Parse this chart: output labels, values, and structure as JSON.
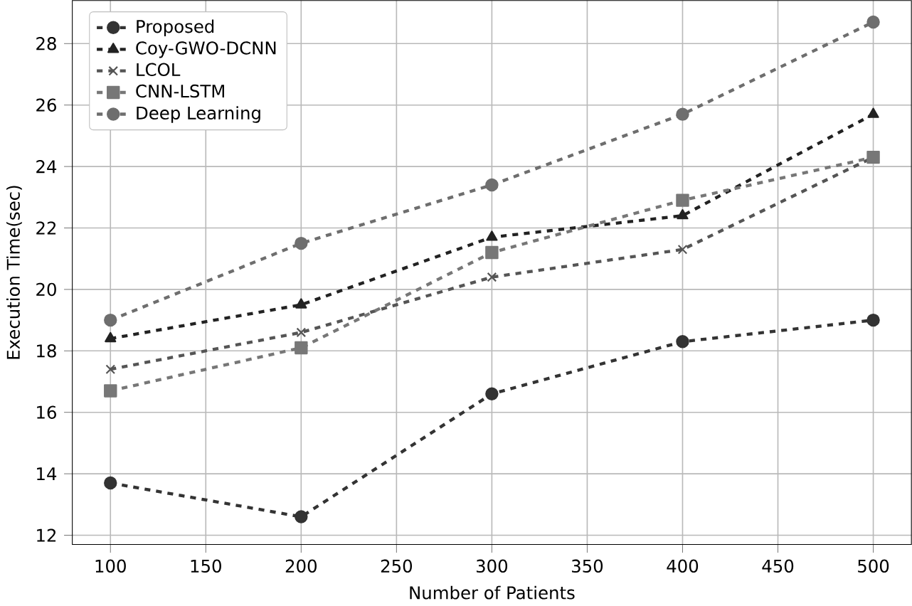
{
  "chart_data": {
    "type": "line",
    "xlabel": "Number of Patients",
    "ylabel": "Execution Time(sec)",
    "x": [
      100,
      200,
      300,
      400,
      500
    ],
    "series": [
      {
        "name": "Proposed",
        "color": "#333333",
        "marker": "circle",
        "values": [
          13.7,
          12.6,
          16.6,
          18.3,
          19.0
        ]
      },
      {
        "name": "Coy-GWO-DCNN",
        "color": "#222222",
        "marker": "triangle",
        "values": [
          18.4,
          19.5,
          21.7,
          22.4,
          25.7
        ]
      },
      {
        "name": "LCOL",
        "color": "#555555",
        "marker": "cross",
        "values": [
          17.4,
          18.6,
          20.4,
          21.3,
          24.3
        ]
      },
      {
        "name": "CNN-LSTM",
        "color": "#777777",
        "marker": "square",
        "values": [
          16.7,
          18.1,
          21.2,
          22.9,
          24.3
        ]
      },
      {
        "name": "Deep Learning",
        "color": "#6e6e6e",
        "marker": "circle",
        "values": [
          19.0,
          21.5,
          23.4,
          25.7,
          28.7
        ]
      }
    ],
    "xlim": [
      80,
      520
    ],
    "ylim": [
      11.7,
      29.4
    ],
    "xticks": [
      100,
      150,
      200,
      250,
      300,
      350,
      400,
      450,
      500
    ],
    "yticks": [
      12,
      14,
      16,
      18,
      20,
      22,
      24,
      26,
      28
    ],
    "grid": true,
    "legend": "top left",
    "line_style": "dashed"
  }
}
